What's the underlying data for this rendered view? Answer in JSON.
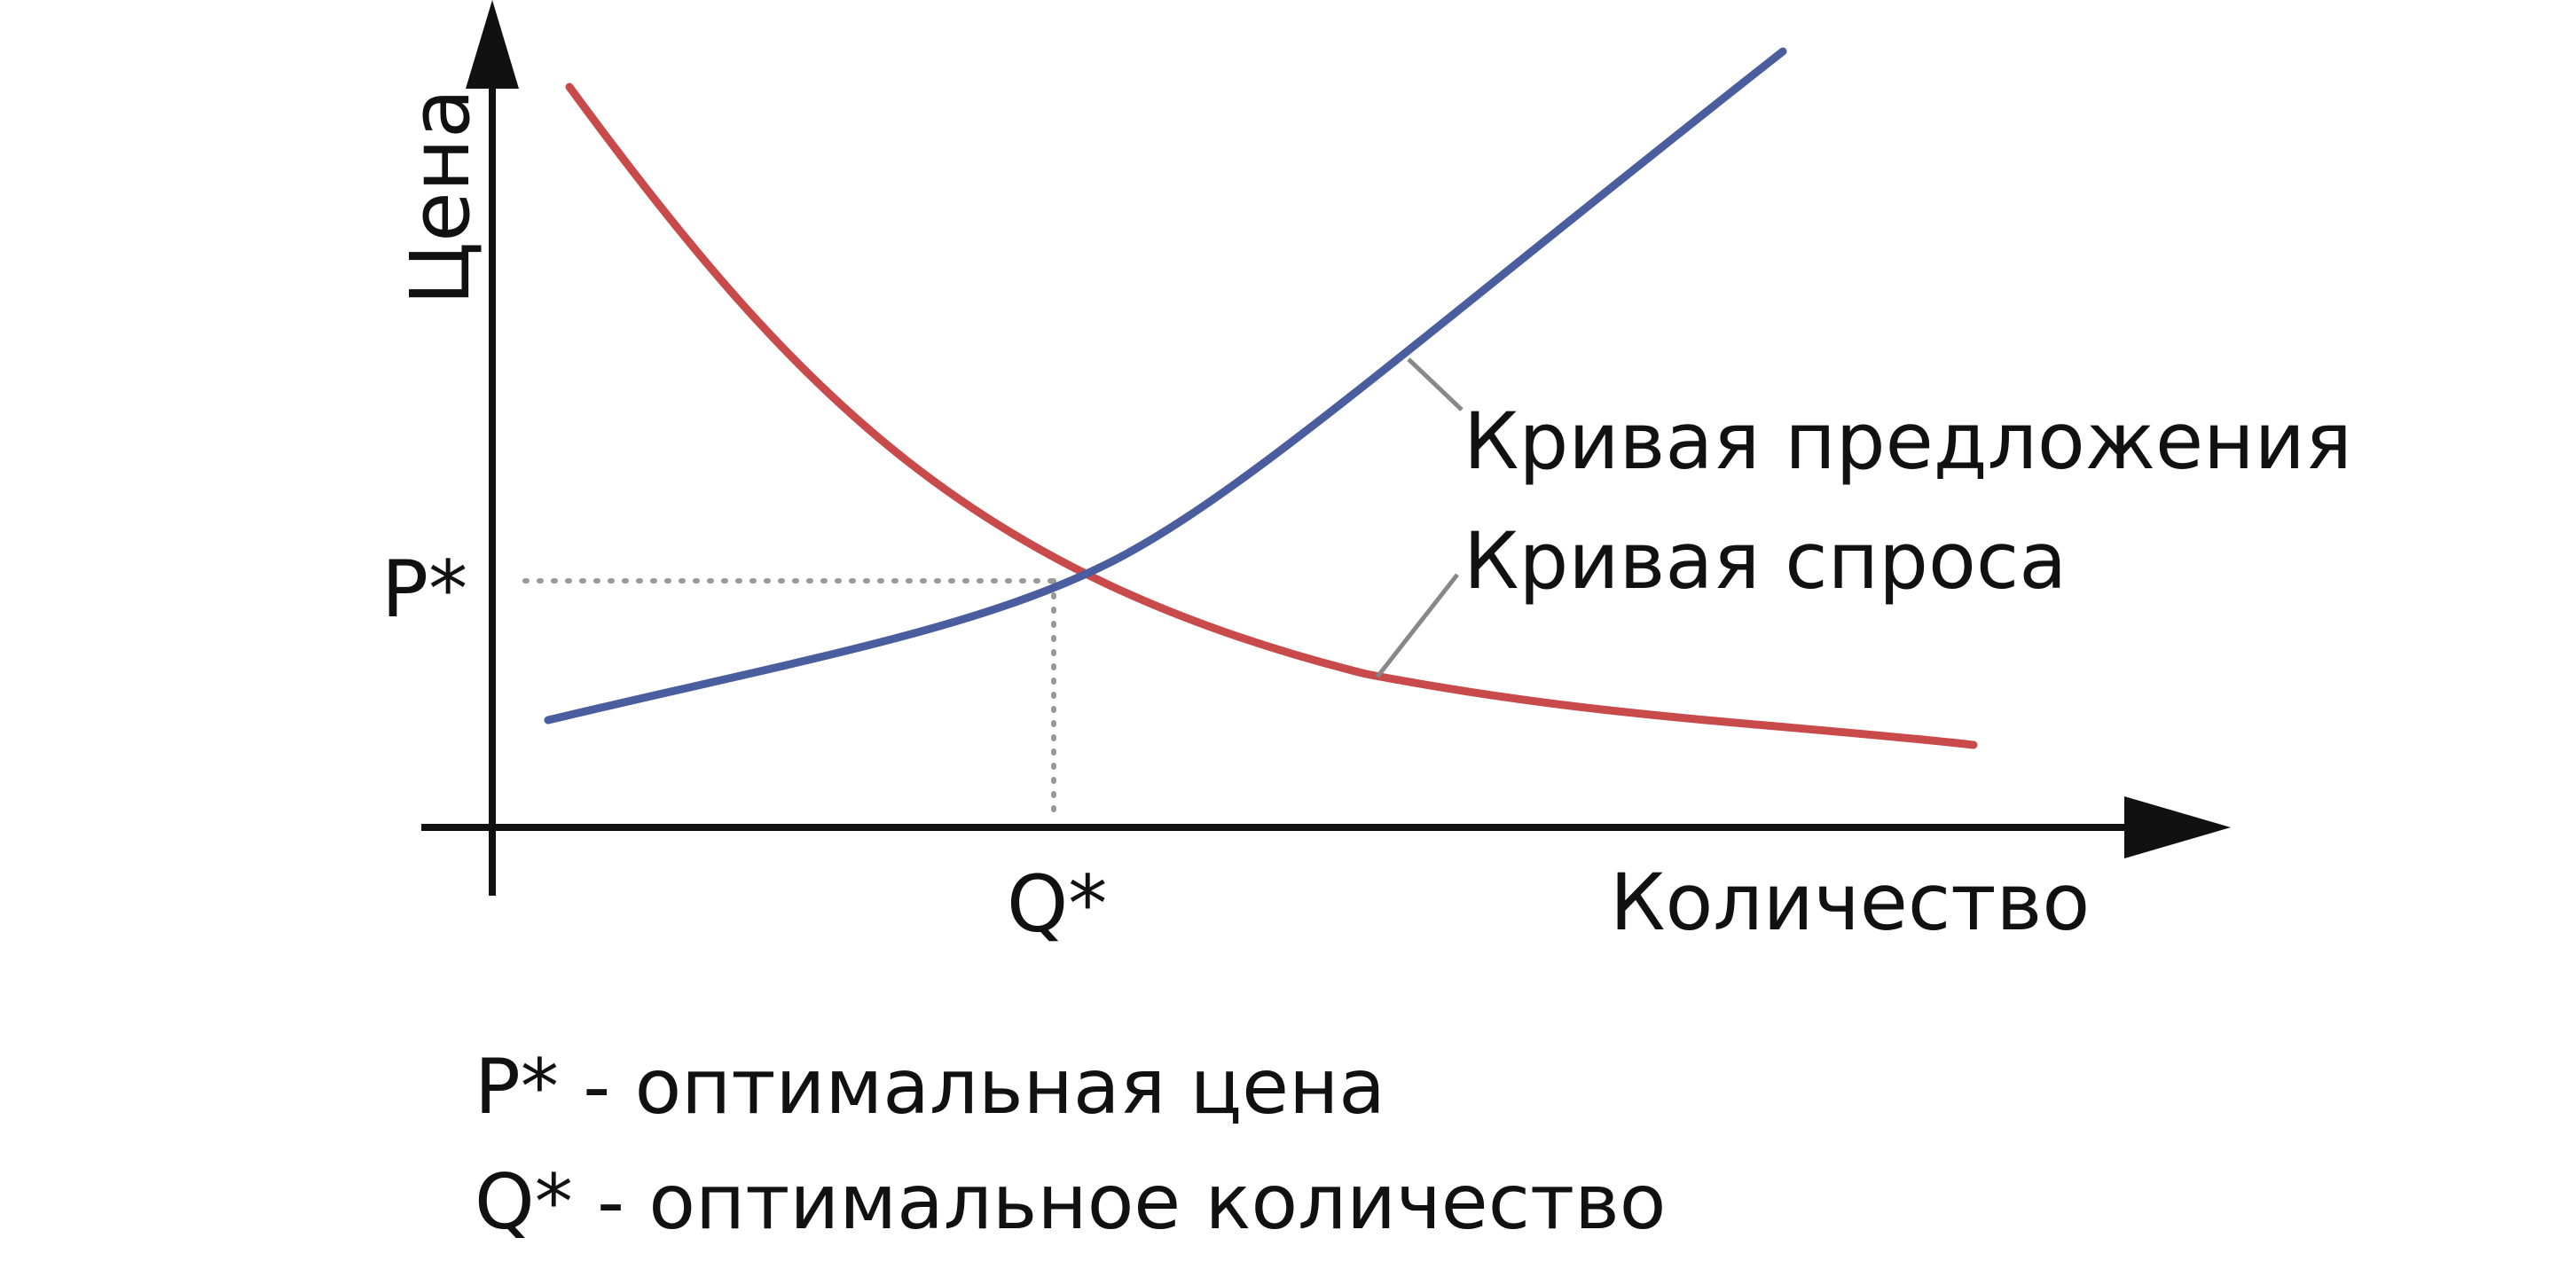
{
  "labels": {
    "price_axis": "Цена",
    "quantity_axis": "Количество",
    "p_star": "P*",
    "q_star": "Q*",
    "supply_curve": "Кривая предложения",
    "demand_curve": "Кривая спроса"
  },
  "legend": {
    "p_line": "P* - оптимальная цена",
    "q_line": "Q* - оптимальное количество"
  },
  "colors": {
    "supply": "#4a5d9e",
    "demand": "#c94a4a",
    "axis": "#111111",
    "guide": "#999999",
    "leader": "#888888"
  }
}
